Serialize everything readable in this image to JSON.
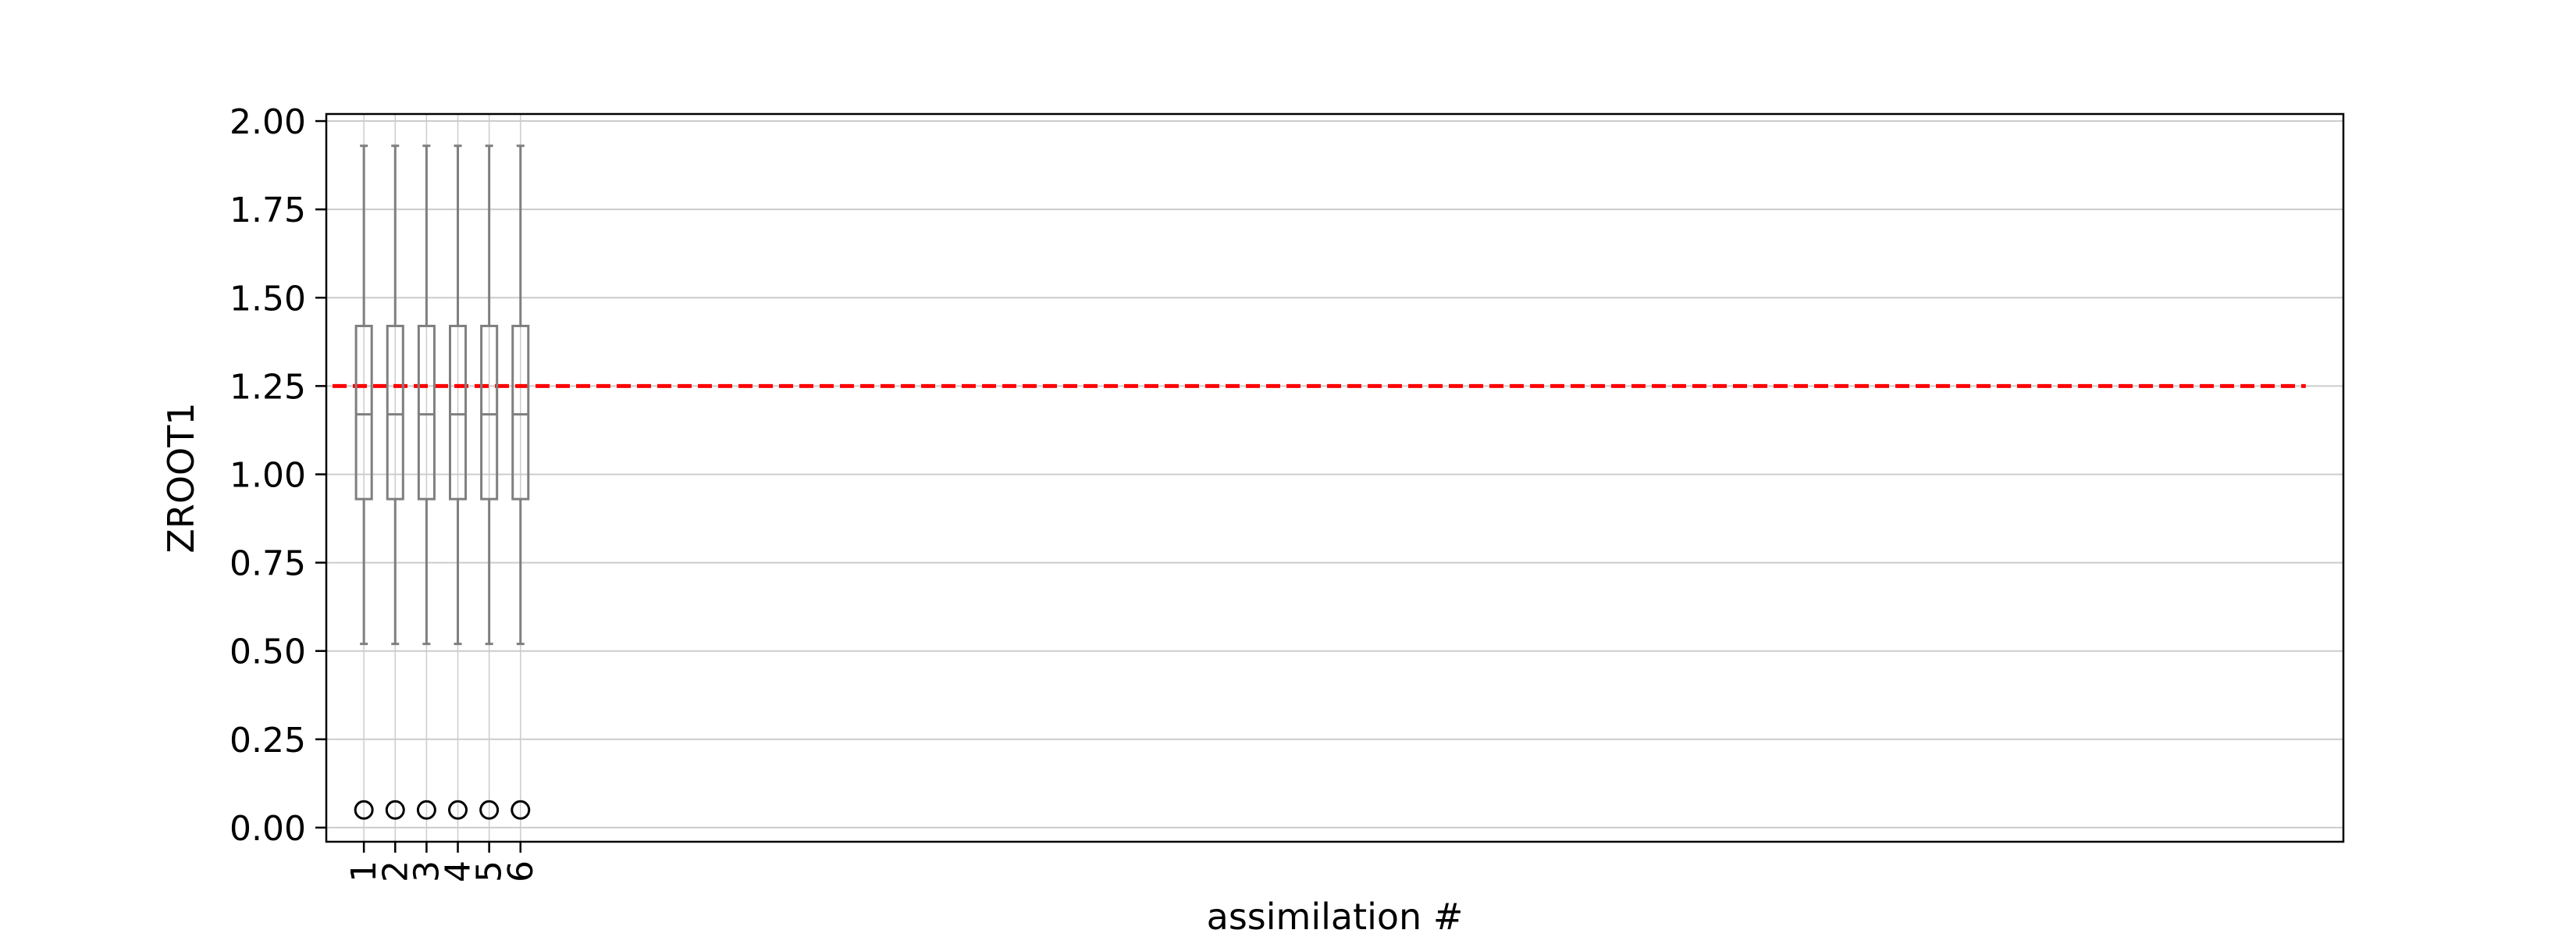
{
  "chart_data": {
    "type": "box",
    "xlabel": "assimilation #",
    "ylabel": "ZROOT1",
    "ylim": [
      -0.04,
      2.02
    ],
    "yticks": [
      0.0,
      0.25,
      0.5,
      0.75,
      1.0,
      1.25,
      1.5,
      1.75,
      2.0
    ],
    "ytick_labels": [
      "0.00",
      "0.25",
      "0.50",
      "0.75",
      "1.00",
      "1.25",
      "1.50",
      "1.75",
      "2.00"
    ],
    "xlim": [
      -0.2,
      64.2
    ],
    "categories": [
      "1",
      "2",
      "3",
      "4",
      "5",
      "6"
    ],
    "boxes": [
      {
        "label": "1",
        "whisker_low": 0.52,
        "q1": 0.93,
        "median": 1.17,
        "q3": 1.42,
        "whisker_high": 1.93,
        "outliers": [
          0.05
        ]
      },
      {
        "label": "2",
        "whisker_low": 0.52,
        "q1": 0.93,
        "median": 1.17,
        "q3": 1.42,
        "whisker_high": 1.93,
        "outliers": [
          0.05
        ]
      },
      {
        "label": "3",
        "whisker_low": 0.52,
        "q1": 0.93,
        "median": 1.17,
        "q3": 1.42,
        "whisker_high": 1.93,
        "outliers": [
          0.05
        ]
      },
      {
        "label": "4",
        "whisker_low": 0.52,
        "q1": 0.93,
        "median": 1.17,
        "q3": 1.42,
        "whisker_high": 1.93,
        "outliers": [
          0.05
        ]
      },
      {
        "label": "5",
        "whisker_low": 0.52,
        "q1": 0.93,
        "median": 1.17,
        "q3": 1.42,
        "whisker_high": 1.93,
        "outliers": [
          0.05
        ]
      },
      {
        "label": "6",
        "whisker_low": 0.52,
        "q1": 0.93,
        "median": 1.17,
        "q3": 1.42,
        "whisker_high": 1.93,
        "outliers": [
          0.05
        ]
      }
    ],
    "reference_line": {
      "y": 1.25,
      "x_start": 0,
      "x_end": 63,
      "color": "#ff0000",
      "style": "dashed"
    },
    "grid": true,
    "colors": {
      "box": "#7f7f7f",
      "reference": "#ff0000",
      "grid": "#cccccc",
      "outlier": "#000000"
    }
  }
}
